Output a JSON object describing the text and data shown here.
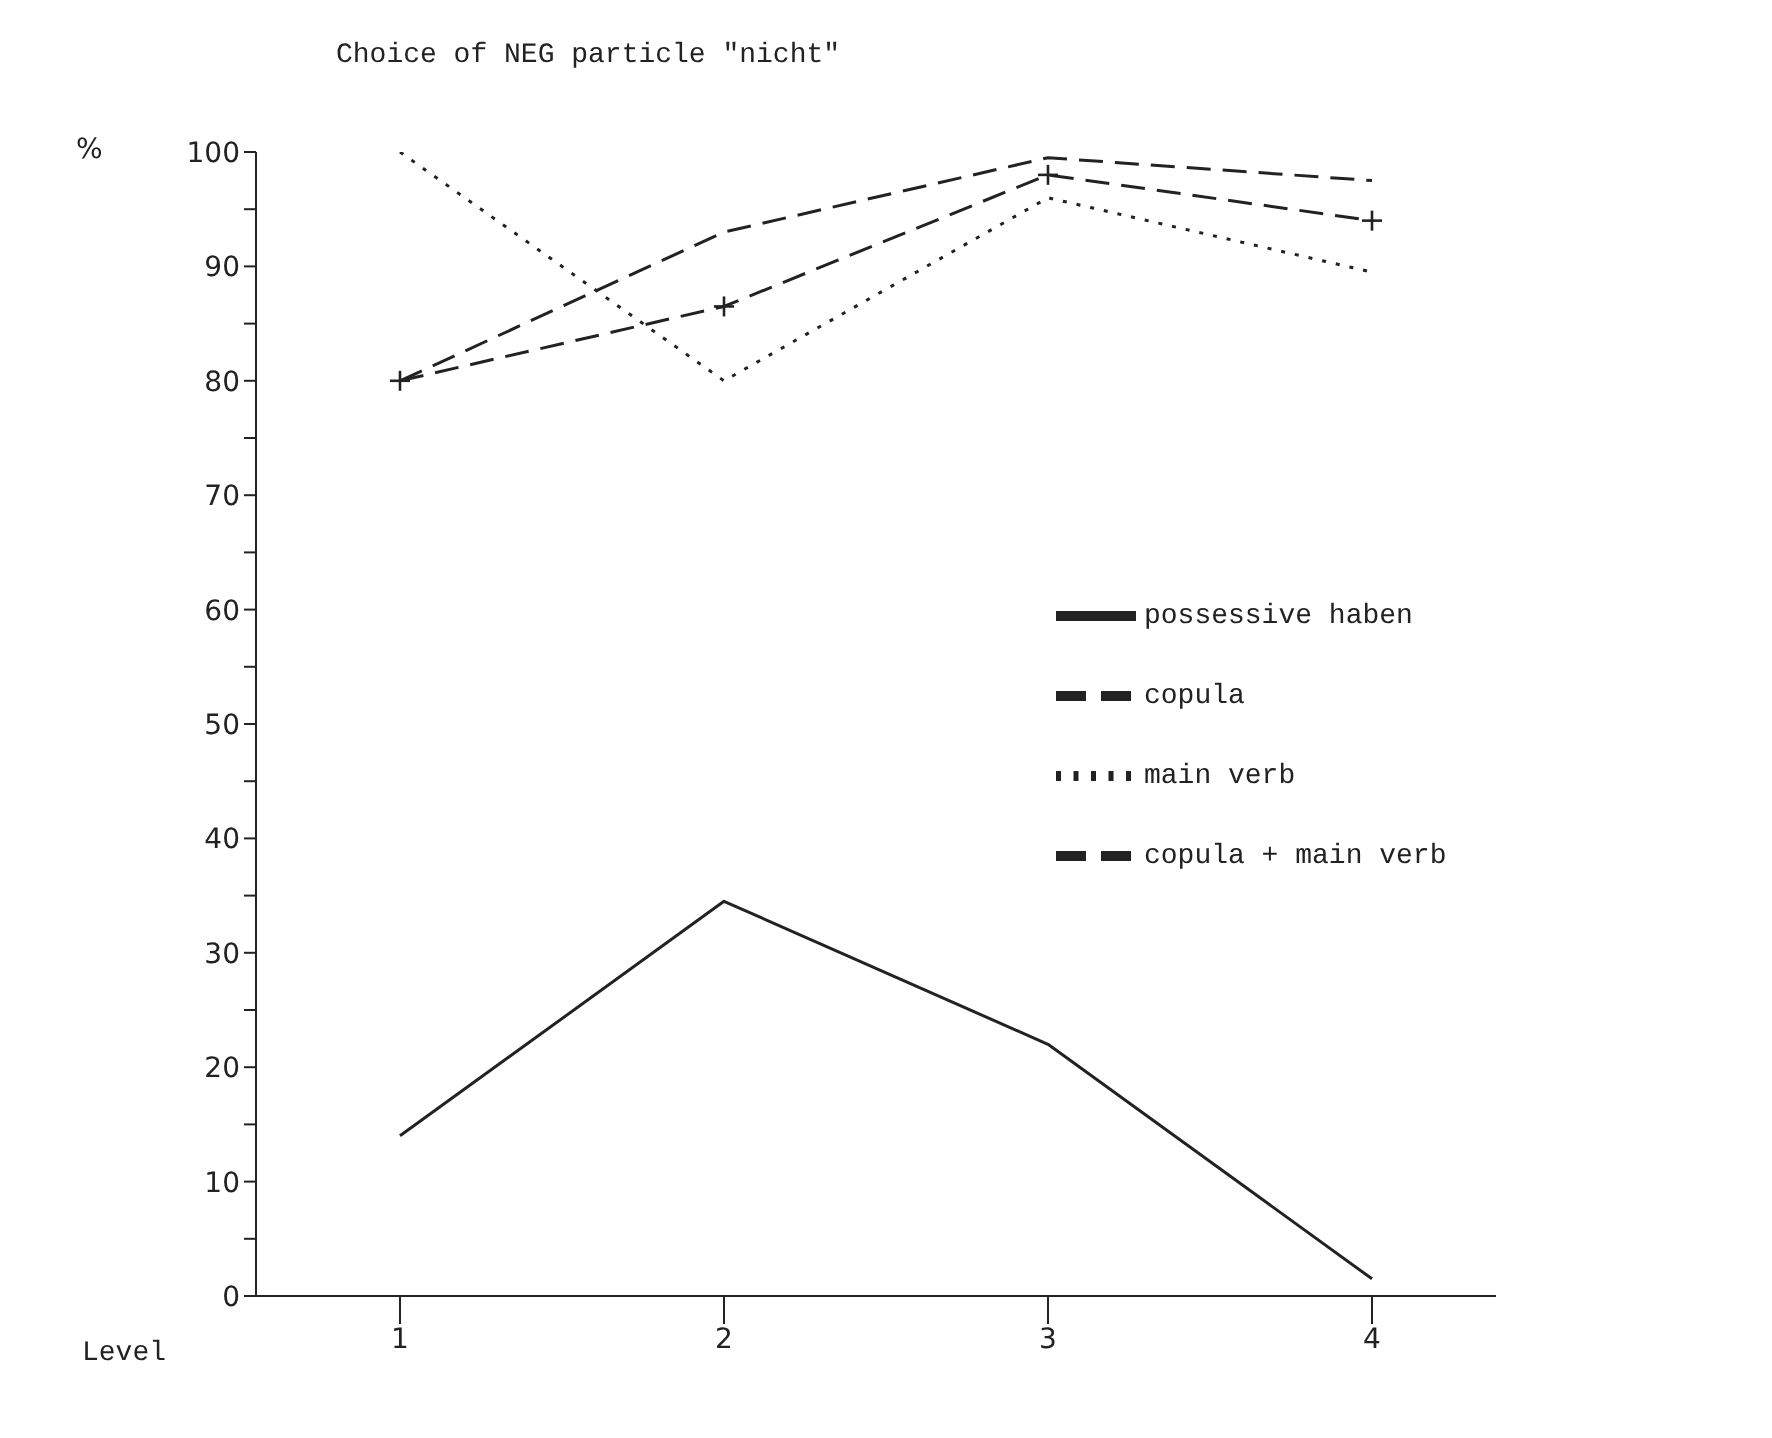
{
  "chart_data": {
    "type": "line",
    "title": "Choice of NEG particle \"nicht\"",
    "xlabel": "Level",
    "ylabel": "%",
    "categories": [
      "1",
      "2",
      "3",
      "4"
    ],
    "series": [
      {
        "name": "possessive haben",
        "color": "#222222",
        "line_style": "solid",
        "marker": "none",
        "values": [
          14,
          34.5,
          22,
          1.5
        ]
      },
      {
        "name": "copula",
        "color": "#222222",
        "line_style": "dashed",
        "marker": "none",
        "values": [
          80,
          93,
          99.5,
          97.5
        ]
      },
      {
        "name": "main verb",
        "color": "#222222",
        "line_style": "dotted",
        "marker": "none",
        "values": [
          100,
          80,
          96,
          89.5
        ]
      },
      {
        "name": "copula + main verb",
        "color": "#222222",
        "line_style": "dashed",
        "marker": "cross",
        "values": [
          80,
          86.5,
          98,
          94
        ]
      }
    ],
    "ylim": [
      0,
      100
    ],
    "yticks": [
      0,
      {
        "value": 5,
        "label": null
      },
      10,
      {
        "value": 15,
        "label": null
      },
      20,
      {
        "value": 25,
        "label": null
      },
      30,
      {
        "value": 35,
        "label": null
      },
      40,
      {
        "value": 45,
        "label": null
      },
      50,
      {
        "value": 55,
        "label": null
      },
      60,
      {
        "value": 65,
        "label": null
      },
      70,
      {
        "value": 75,
        "label": null
      },
      80,
      {
        "value": 85,
        "label": null
      },
      90,
      {
        "value": 95,
        "label": null
      },
      100
    ],
    "grid": false,
    "legend": "right"
  }
}
